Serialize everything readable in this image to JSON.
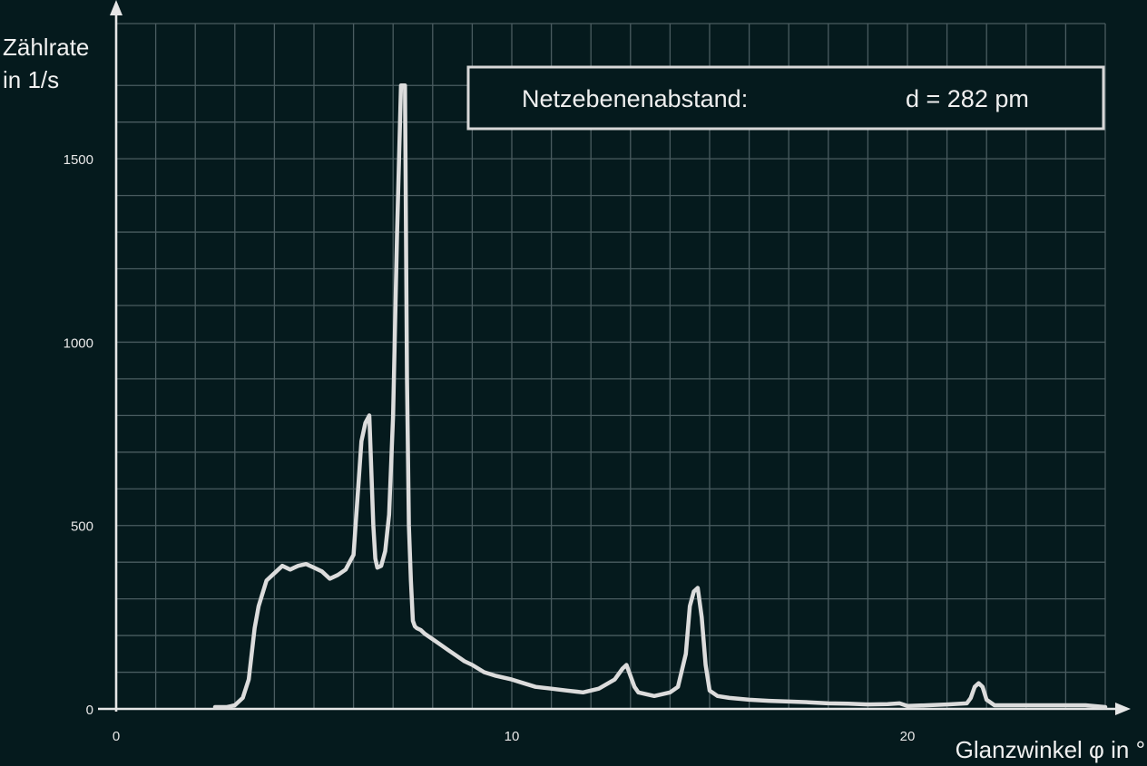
{
  "chart_data": {
    "type": "line",
    "title": "",
    "ylabel_line1": "Zählrate",
    "ylabel_line2": "in 1/s",
    "xlabel": "Glanzwinkel φ in °",
    "xlim": [
      0,
      25
    ],
    "ylim": [
      0,
      1750
    ],
    "x_ticks": [
      0,
      10,
      20
    ],
    "y_ticks": [
      0,
      500,
      1000,
      1500
    ],
    "grid": true,
    "info_box": {
      "label": "Netzebenenabstand:",
      "value": "d = 282 pm"
    },
    "series": [
      {
        "x": [
          2.5,
          2.8,
          3.0,
          3.2,
          3.35,
          3.5,
          3.6,
          3.8,
          4.0,
          4.2,
          4.4,
          4.5,
          4.6,
          4.8,
          5.0,
          5.2,
          5.4,
          5.6,
          5.8,
          5.9,
          6.0,
          6.2,
          6.3,
          6.4,
          6.5,
          6.55,
          6.6,
          6.7,
          6.8,
          6.9,
          7.0,
          7.1,
          7.2,
          7.3,
          7.35,
          7.4,
          7.45,
          7.5,
          7.55,
          7.6,
          7.7,
          7.8,
          8.0,
          8.2,
          8.4,
          8.6,
          8.8,
          9.0,
          9.3,
          9.6,
          10.0,
          10.3,
          10.6,
          11.0,
          11.4,
          11.8,
          12.2,
          12.6,
          12.8,
          12.9,
          13.0,
          13.1,
          13.2,
          13.4,
          13.6,
          13.8,
          14.0,
          14.2,
          14.4,
          14.5,
          14.6,
          14.7,
          14.8,
          14.9,
          15.0,
          15.2,
          15.5,
          16.0,
          16.5,
          17.0,
          17.5,
          18.0,
          18.5,
          19.0,
          19.5,
          19.8,
          20.0,
          20.5,
          21.0,
          21.5,
          21.6,
          21.7,
          21.8,
          21.9,
          22.0,
          22.2,
          22.5,
          23.0,
          23.5,
          24.0,
          24.5,
          25.0
        ],
        "y": [
          5,
          5,
          10,
          30,
          80,
          220,
          280,
          350,
          370,
          390,
          380,
          385,
          390,
          395,
          385,
          375,
          355,
          365,
          380,
          400,
          420,
          730,
          780,
          800,
          500,
          410,
          385,
          390,
          430,
          530,
          800,
          1300,
          1700,
          1700,
          900,
          500,
          350,
          240,
          225,
          220,
          215,
          205,
          190,
          175,
          160,
          145,
          130,
          120,
          100,
          90,
          80,
          70,
          60,
          55,
          50,
          45,
          55,
          80,
          110,
          120,
          90,
          60,
          45,
          40,
          35,
          40,
          45,
          60,
          150,
          280,
          320,
          330,
          250,
          120,
          50,
          35,
          30,
          25,
          22,
          20,
          18,
          15,
          14,
          12,
          13,
          15,
          8,
          10,
          12,
          15,
          30,
          60,
          70,
          60,
          25,
          10,
          10,
          10,
          10,
          10,
          10,
          5
        ]
      }
    ]
  }
}
